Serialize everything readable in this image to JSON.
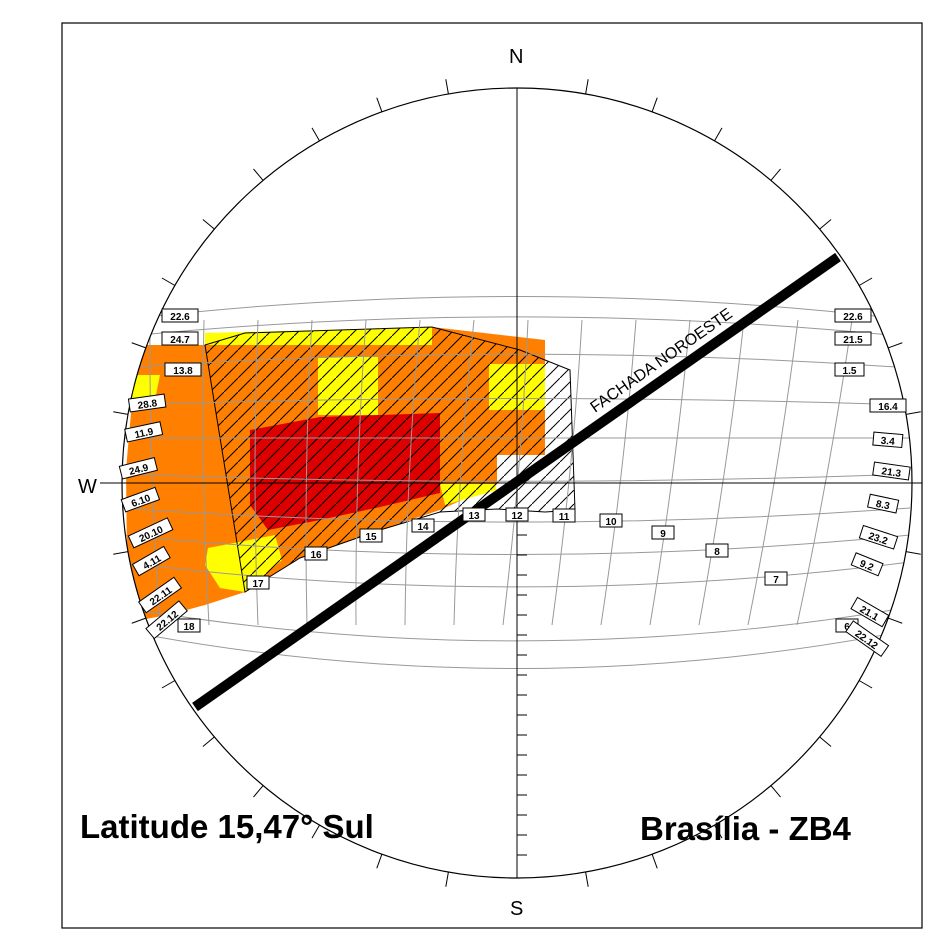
{
  "directions": {
    "north": "N",
    "south": "S",
    "west": "W"
  },
  "facade_label": "FACHADA NOROESTE",
  "captions": {
    "latitude": "Latitude 15,47° Sul",
    "city": "Brasília - ZB4"
  },
  "hour_labels": [
    "18",
    "17",
    "16",
    "15",
    "14",
    "13",
    "12",
    "11",
    "10",
    "9",
    "8",
    "7",
    "6"
  ],
  "west_date_labels": [
    "22.6",
    "24.7",
    "13.8",
    "28.8",
    "11.9",
    "24.9",
    "6.10",
    "20.10",
    "4.11",
    "22.11",
    "22.12"
  ],
  "east_date_labels": [
    "22.6",
    "21.5",
    "1.5",
    "16.4",
    "3.4",
    "21.3",
    "8.3",
    "23.2",
    "9.2",
    "21.1",
    "22.12"
  ],
  "colors": {
    "red": "#dd0000",
    "orange": "#ff7f00",
    "yellow": "#ffff00",
    "grid": "#999999"
  }
}
